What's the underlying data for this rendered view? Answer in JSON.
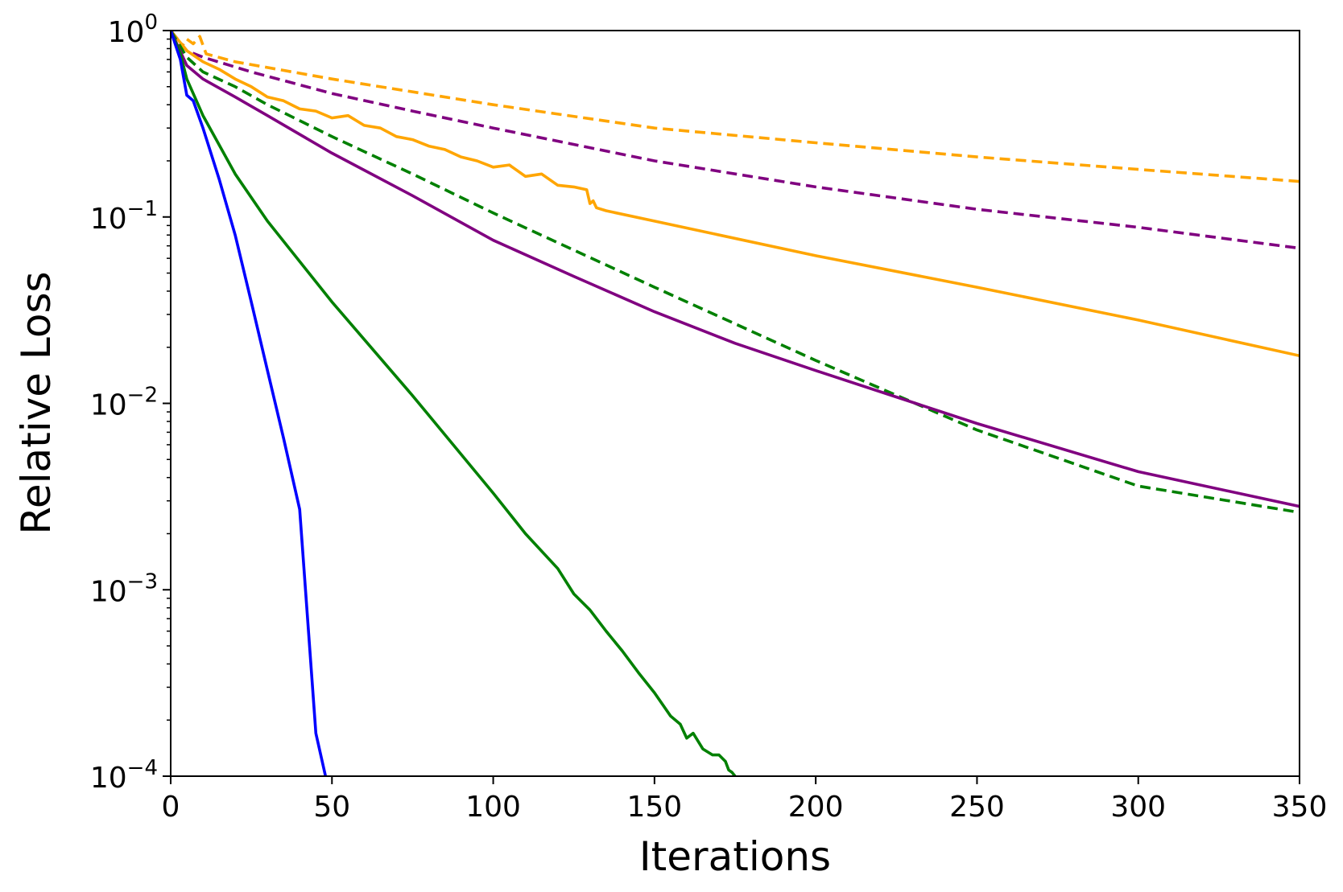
{
  "chart_data": {
    "type": "line",
    "title": "",
    "xlabel": "Iterations",
    "ylabel": "Relative Loss",
    "xlim": [
      0,
      350
    ],
    "ylim": [
      0.0001,
      1
    ],
    "yscale": "log",
    "grid": false,
    "xticks": [
      0,
      50,
      100,
      150,
      200,
      250,
      300,
      350
    ],
    "xtick_labels": [
      "0",
      "50",
      "100",
      "150",
      "200",
      "250",
      "300",
      "350"
    ],
    "yticks": [
      1,
      0.1,
      0.01,
      0.001,
      0.0001
    ],
    "ytick_labels": [
      {
        "base": "10",
        "exp": "0"
      },
      {
        "base": "10",
        "exp": "−1"
      },
      {
        "base": "10",
        "exp": "−2"
      },
      {
        "base": "10",
        "exp": "−3"
      },
      {
        "base": "10",
        "exp": "−4"
      }
    ],
    "series": [
      {
        "color": "#ffa500",
        "style": "dashed",
        "x": [
          0,
          3,
          5,
          7,
          9,
          11,
          20,
          50,
          100,
          150,
          200,
          250,
          300,
          350
        ],
        "y": [
          1.0,
          0.8,
          0.9,
          0.85,
          0.93,
          0.75,
          0.68,
          0.55,
          0.4,
          0.3,
          0.25,
          0.21,
          0.18,
          0.155
        ]
      },
      {
        "color": "#800080",
        "style": "dashed",
        "x": [
          0,
          5,
          10,
          25,
          50,
          75,
          100,
          150,
          200,
          250,
          300,
          350
        ],
        "y": [
          1.0,
          0.78,
          0.72,
          0.6,
          0.46,
          0.37,
          0.3,
          0.2,
          0.145,
          0.11,
          0.088,
          0.068
        ]
      },
      {
        "color": "#ffa500",
        "style": "solid",
        "x": [
          0,
          5,
          10,
          15,
          20,
          25,
          30,
          35,
          40,
          45,
          50,
          55,
          60,
          65,
          70,
          75,
          80,
          85,
          90,
          95,
          100,
          105,
          110,
          115,
          120,
          125,
          129,
          130,
          131,
          132,
          135,
          150,
          200,
          250,
          300,
          350
        ],
        "y": [
          1.0,
          0.78,
          0.68,
          0.62,
          0.55,
          0.5,
          0.44,
          0.42,
          0.38,
          0.37,
          0.34,
          0.35,
          0.31,
          0.3,
          0.27,
          0.26,
          0.24,
          0.23,
          0.21,
          0.2,
          0.185,
          0.19,
          0.165,
          0.17,
          0.148,
          0.145,
          0.14,
          0.118,
          0.122,
          0.112,
          0.108,
          0.095,
          0.062,
          0.042,
          0.028,
          0.018
        ]
      },
      {
        "color": "#008000",
        "style": "dashed",
        "x": [
          0,
          5,
          10,
          20,
          30,
          50,
          75,
          100,
          150,
          200,
          250,
          300,
          350
        ],
        "y": [
          1.0,
          0.72,
          0.6,
          0.5,
          0.4,
          0.27,
          0.17,
          0.105,
          0.042,
          0.017,
          0.0072,
          0.0036,
          0.0026
        ]
      },
      {
        "color": "#800080",
        "style": "solid",
        "x": [
          0,
          5,
          10,
          20,
          30,
          50,
          75,
          100,
          125,
          150,
          175,
          200,
          250,
          300,
          350
        ],
        "y": [
          1.0,
          0.65,
          0.55,
          0.44,
          0.35,
          0.22,
          0.13,
          0.075,
          0.048,
          0.031,
          0.021,
          0.015,
          0.0078,
          0.0043,
          0.0028
        ]
      },
      {
        "color": "#008000",
        "style": "solid",
        "x": [
          0,
          3,
          5,
          10,
          20,
          30,
          50,
          75,
          100,
          110,
          120,
          125,
          130,
          135,
          140,
          145,
          150,
          155,
          158,
          160,
          162,
          165,
          168,
          170,
          172,
          173,
          174,
          175
        ],
        "y": [
          1.0,
          0.75,
          0.55,
          0.35,
          0.17,
          0.095,
          0.035,
          0.011,
          0.0033,
          0.002,
          0.0013,
          0.00095,
          0.00078,
          0.0006,
          0.00047,
          0.00036,
          0.00028,
          0.00021,
          0.00019,
          0.00016,
          0.00017,
          0.00014,
          0.00013,
          0.00013,
          0.00012,
          0.000108,
          0.000105,
          0.0001
        ]
      },
      {
        "color": "#0000ff",
        "style": "solid",
        "x": [
          0,
          3,
          5,
          7,
          10,
          15,
          20,
          25,
          30,
          35,
          40,
          45,
          48
        ],
        "y": [
          1.0,
          0.7,
          0.45,
          0.42,
          0.3,
          0.16,
          0.08,
          0.035,
          0.015,
          0.0065,
          0.0027,
          0.00017,
          0.0001
        ]
      }
    ]
  }
}
